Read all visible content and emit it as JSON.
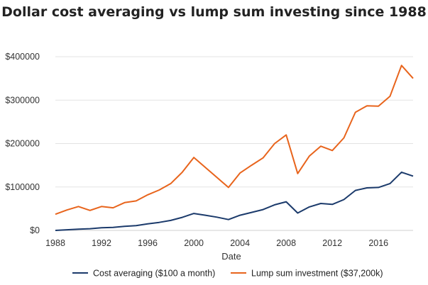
{
  "chart_data": {
    "type": "line",
    "title": "Dollar cost averaging vs lump sum investing since 1988",
    "xlabel": "Date",
    "ylabel": "",
    "xlim": [
      1988,
      2019
    ],
    "ylim": [
      0,
      400000
    ],
    "x_ticks": [
      1988,
      1992,
      1996,
      2000,
      2004,
      2008,
      2012,
      2016
    ],
    "y_ticks": [
      0,
      100000,
      200000,
      300000,
      400000
    ],
    "y_tick_labels": [
      "$0",
      "$100000",
      "$200000",
      "$300000",
      "$400000"
    ],
    "grid": "horizontal",
    "legend_position": "bottom",
    "x": [
      1988,
      1989,
      1990,
      1991,
      1992,
      1993,
      1994,
      1995,
      1996,
      1997,
      1998,
      1999,
      2000,
      2001,
      2002,
      2003,
      2004,
      2005,
      2006,
      2007,
      2008,
      2009,
      2010,
      2011,
      2012,
      2013,
      2014,
      2015,
      2016,
      2017,
      2018,
      2019
    ],
    "series": [
      {
        "name": "Cost averaging ($100 a month)",
        "color": "#1b3a6b",
        "values": [
          0,
          1500,
          3000,
          4000,
          6000,
          7000,
          9500,
          11000,
          15000,
          18500,
          23000,
          30000,
          39000,
          35000,
          30500,
          25000,
          35000,
          41500,
          48000,
          59000,
          66000,
          40000,
          54000,
          62000,
          60000,
          71000,
          92000,
          98000,
          99000,
          108000,
          134000,
          125000
        ]
      },
      {
        "name": "Lump sum investment ($37,200k)",
        "color": "#e8641c",
        "values": [
          37200,
          47000,
          55000,
          46000,
          55000,
          52000,
          64000,
          68000,
          82000,
          93000,
          108000,
          134000,
          168000,
          145000,
          122000,
          99000,
          132000,
          150000,
          167000,
          200000,
          220000,
          131000,
          171000,
          194000,
          184000,
          213000,
          272000,
          287000,
          286000,
          309000,
          380000,
          350000
        ]
      }
    ]
  }
}
